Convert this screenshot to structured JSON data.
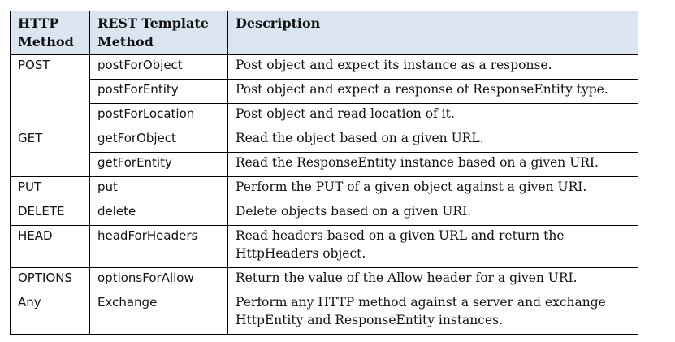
{
  "table": {
    "headers": [
      "HTTP Method",
      "REST Template Method",
      "Description"
    ],
    "rows": [
      {
        "method": "POST",
        "template": "postForObject",
        "description": "Post object and expect its instance as a response."
      },
      {
        "method": "",
        "template": "postForEntity",
        "description": "Post object and expect a response of ResponseEntity type."
      },
      {
        "method": "",
        "template": "postForLocation",
        "description": "Post object and read location of it."
      },
      {
        "method": "GET",
        "template": "getForObject",
        "description": "Read the object based on a given URL."
      },
      {
        "method": "",
        "template": "getForEntity",
        "description": "Read the ResponseEntity instance based on a given URI."
      },
      {
        "method": "PUT",
        "template": "put",
        "description": "Perform the PUT of a given object against a given URI."
      },
      {
        "method": "DELETE",
        "template": "delete",
        "description": "Delete objects based on a given URI."
      },
      {
        "method": "HEAD",
        "template": "headForHeaders",
        "description": "Read headers based on a given URL and return the HttpHeaders object."
      },
      {
        "method": "OPTIONS",
        "template": "optionsForAllow",
        "description": "Return the value of the Allow header for a given URI."
      },
      {
        "method": "Any",
        "template": "Exchange",
        "description": "Perform any HTTP method against a server and exchange HttpEntity and ResponseEntity instances."
      }
    ]
  }
}
